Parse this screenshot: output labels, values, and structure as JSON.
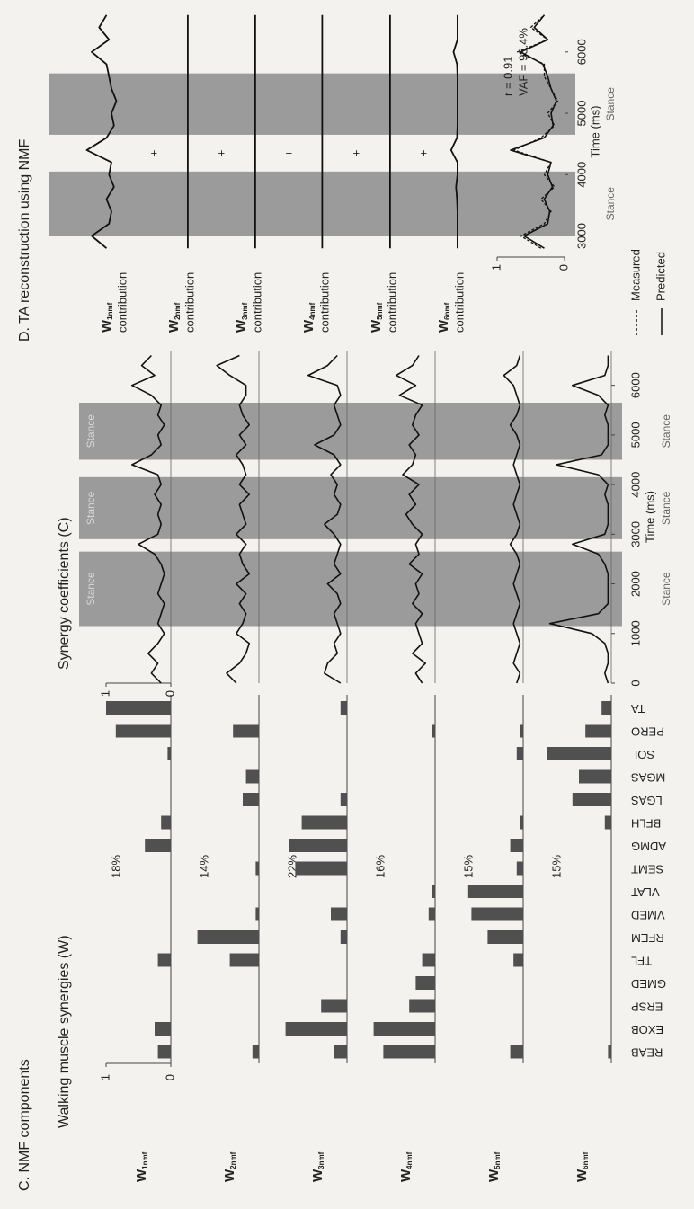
{
  "chart_data": [
    {
      "type": "bar",
      "panel_title": "C. NMF components",
      "title": "Walking muscle synergies (W)",
      "categories": [
        "REAB",
        "EXOB",
        "ERSP",
        "GMED",
        "TFL",
        "RFEM",
        "VMED",
        "VLAT",
        "SEMT",
        "ADMG",
        "BFLH",
        "LGAS",
        "MGAS",
        "SOL",
        "PERO",
        "TA"
      ],
      "ylim": [
        0,
        1
      ],
      "yticks": [
        0,
        1
      ],
      "color": "#505050",
      "series": [
        {
          "name": {
            "base": "W",
            "sub": "1nmf"
          },
          "annotation": "18%",
          "values": [
            0.2,
            0.25,
            0,
            0,
            0.2,
            0,
            0,
            0,
            0,
            0.4,
            0.15,
            0,
            0,
            0.05,
            0.85,
            1.0
          ]
        },
        {
          "name": {
            "base": "W",
            "sub": "2nmf"
          },
          "annotation": "14%",
          "values": [
            0.1,
            0,
            0,
            0,
            0.45,
            0.95,
            0.05,
            0,
            0.05,
            0,
            0,
            0.25,
            0.2,
            0,
            0.4,
            0
          ]
        },
        {
          "name": {
            "base": "W",
            "sub": "3nmf"
          },
          "annotation": "22%",
          "values": [
            0.2,
            0.95,
            0.4,
            0,
            0,
            0.1,
            0.25,
            0,
            0.8,
            0.9,
            0.7,
            0.1,
            0,
            0,
            0,
            0.1
          ]
        },
        {
          "name": {
            "base": "W",
            "sub": "4nmf"
          },
          "annotation": "16%",
          "values": [
            0.8,
            0.95,
            0.4,
            0.3,
            0.2,
            0,
            0.1,
            0.05,
            0,
            0,
            0,
            0,
            0,
            0,
            0.05,
            0
          ]
        },
        {
          "name": {
            "base": "W",
            "sub": "5nmf"
          },
          "annotation": "15%",
          "values": [
            0.2,
            0,
            0,
            0,
            0.15,
            0.55,
            0.8,
            0.85,
            0.1,
            0.2,
            0.05,
            0,
            0,
            0.1,
            0.05,
            0
          ]
        },
        {
          "name": {
            "base": "W",
            "sub": "6nmf"
          },
          "annotation": "15%",
          "values": [
            0.05,
            0,
            0,
            0,
            0,
            0,
            0,
            0,
            0,
            0,
            0.1,
            0.6,
            0.5,
            1.0,
            0.4,
            0.15
          ]
        }
      ]
    },
    {
      "type": "line",
      "title": "Synergy coefficients (C)",
      "x": [
        0,
        200,
        400,
        600,
        800,
        1000,
        1200,
        1400,
        1600,
        1800,
        2000,
        2200,
        2400,
        2600,
        2800,
        3000,
        3200,
        3400,
        3600,
        3800,
        4000,
        4200,
        4400,
        4600,
        4800,
        5000,
        5200,
        5400,
        5600,
        5800,
        6000,
        6200,
        6400,
        6600
      ],
      "xlim": [
        0,
        6700
      ],
      "xticks": [
        0,
        1000,
        2000,
        3000,
        4000,
        5000,
        6000
      ],
      "xlabel": "Time (ms)",
      "ylim": [
        0,
        1
      ],
      "yticks": [
        0,
        1
      ],
      "color": "#111111",
      "band_color": "#8c8c8c",
      "band_label_positions": [
        "top",
        "bottom"
      ],
      "bands": [
        {
          "start": 1150,
          "end": 2650,
          "label": "Stance"
        },
        {
          "start": 2900,
          "end": 4150,
          "label": "Stance"
        },
        {
          "start": 4500,
          "end": 5650,
          "label": "Stance"
        }
      ],
      "series": [
        {
          "values": [
            0.15,
            0.3,
            0.2,
            0.35,
            0.2,
            0.1,
            0.2,
            0.15,
            0.1,
            0.2,
            0.15,
            0.1,
            0.15,
            0.25,
            0.5,
            0.2,
            0.15,
            0.2,
            0.15,
            0.25,
            0.15,
            0.2,
            0.6,
            0.3,
            0.15,
            0.2,
            0.1,
            0.2,
            0.15,
            0.3,
            0.6,
            0.25,
            0.45,
            0.3
          ]
        },
        {
          "values": [
            0.35,
            0.5,
            0.3,
            0.2,
            0.15,
            0.35,
            0.25,
            0.2,
            0.3,
            0.2,
            0.35,
            0.15,
            0.25,
            0.3,
            0.2,
            0.35,
            0.2,
            0.25,
            0.3,
            0.15,
            0.3,
            0.2,
            0.25,
            0.35,
            0.2,
            0.3,
            0.15,
            0.25,
            0.3,
            0.2,
            0.2,
            0.45,
            0.65,
            0.3
          ]
        },
        {
          "values": [
            0.1,
            0.35,
            0.3,
            0.15,
            0.2,
            0.1,
            0.15,
            0.2,
            0.1,
            0.15,
            0.3,
            0.1,
            0.2,
            0.15,
            0.1,
            0.2,
            0.35,
            0.15,
            0.1,
            0.2,
            0.15,
            0.25,
            0.1,
            0.2,
            0.5,
            0.2,
            0.1,
            0.15,
            0.2,
            0.1,
            0.15,
            0.6,
            0.3,
            0.15
          ]
        },
        {
          "values": [
            0.2,
            0.3,
            0.15,
            0.35,
            0.2,
            0.25,
            0.3,
            0.2,
            0.35,
            0.25,
            0.3,
            0.2,
            0.4,
            0.25,
            0.3,
            0.2,
            0.35,
            0.45,
            0.3,
            0.4,
            0.25,
            0.5,
            0.35,
            0.3,
            0.4,
            0.25,
            0.35,
            0.3,
            0.2,
            0.55,
            0.3,
            0.6,
            0.35,
            0.25
          ]
        },
        {
          "values": [
            0.1,
            0.05,
            0.15,
            0.1,
            0.05,
            0.1,
            0.15,
            0.1,
            0.05,
            0.1,
            0.15,
            0.1,
            0.05,
            0.1,
            0.2,
            0.1,
            0.05,
            0.1,
            0.15,
            0.1,
            0.05,
            0.1,
            0.15,
            0.1,
            0.05,
            0.1,
            0.2,
            0.1,
            0.05,
            0.1,
            0.15,
            0.3,
            0.1,
            0.05
          ]
        },
        {
          "values": [
            0.05,
            0.1,
            0.05,
            0.05,
            0.1,
            0.3,
            0.95,
            0.2,
            0.05,
            0.05,
            0.05,
            0.05,
            0.1,
            0.2,
            0.6,
            0.1,
            0.05,
            0.05,
            0.05,
            0.1,
            0.05,
            0.2,
            0.85,
            0.15,
            0.05,
            0.05,
            0.05,
            0.1,
            0.05,
            0.2,
            0.6,
            0.1,
            0.05,
            0.05
          ]
        }
      ]
    },
    {
      "type": "line",
      "title": "D. TA reconstruction using NMF",
      "x": [
        2800,
        3000,
        3200,
        3400,
        3600,
        3800,
        4000,
        4200,
        4400,
        4600,
        4800,
        5000,
        5200,
        5400,
        5600,
        5800,
        6000,
        6200,
        6400,
        6600
      ],
      "xlim": [
        2700,
        6700
      ],
      "xticks": [
        3000,
        4000,
        5000,
        6000
      ],
      "xlabel": "Time (ms)",
      "ylim": [
        0,
        1
      ],
      "yticks": [
        0,
        1
      ],
      "color": "#111111",
      "band_color": "#8c8c8c",
      "band_label_positions": [
        "bottom"
      ],
      "bands": [
        {
          "start": 3000,
          "end": 4050,
          "label": "Stance"
        },
        {
          "start": 4650,
          "end": 5650,
          "label": "Stance"
        }
      ],
      "contributions": [
        {
          "name": {
            "base": "W",
            "sub": "1nmf"
          },
          "label": "contribution",
          "values": [
            0.3,
            0.6,
            0.25,
            0.2,
            0.3,
            0.15,
            0.25,
            0.2,
            0.7,
            0.3,
            0.15,
            0.2,
            0.1,
            0.2,
            0.25,
            0.3,
            0.6,
            0.25,
            0.45,
            0.3
          ]
        },
        {
          "name": {
            "base": "W",
            "sub": "2nmf"
          },
          "label": "contribution",
          "values": [
            0.02,
            0.02,
            0.02,
            0.02,
            0.02,
            0.02,
            0.02,
            0.02,
            0.02,
            0.02,
            0.02,
            0.02,
            0.02,
            0.02,
            0.02,
            0.02,
            0.02,
            0.02,
            0.02,
            0.02
          ]
        },
        {
          "name": {
            "base": "W",
            "sub": "3nmf"
          },
          "label": "contribution",
          "values": [
            0.02,
            0.02,
            0.02,
            0.02,
            0.02,
            0.02,
            0.02,
            0.02,
            0.02,
            0.02,
            0.02,
            0.02,
            0.02,
            0.02,
            0.02,
            0.02,
            0.02,
            0.02,
            0.02,
            0.02
          ]
        },
        {
          "name": {
            "base": "W",
            "sub": "4nmf"
          },
          "label": "contribution",
          "values": [
            0.03,
            0.03,
            0.03,
            0.03,
            0.03,
            0.03,
            0.03,
            0.03,
            0.03,
            0.03,
            0.03,
            0.03,
            0.03,
            0.03,
            0.03,
            0.03,
            0.03,
            0.03,
            0.03,
            0.03
          ]
        },
        {
          "name": {
            "base": "W",
            "sub": "5nmf"
          },
          "label": "contribution",
          "values": [
            0.02,
            0.02,
            0.02,
            0.02,
            0.02,
            0.02,
            0.02,
            0.02,
            0.02,
            0.02,
            0.02,
            0.02,
            0.02,
            0.02,
            0.02,
            0.02,
            0.02,
            0.02,
            0.02,
            0.02
          ]
        },
        {
          "name": {
            "base": "W",
            "sub": "6nmf"
          },
          "label": "contribution",
          "values": [
            0.02,
            0.02,
            0.02,
            0.02,
            0.03,
            0.05,
            0.02,
            0.02,
            0.15,
            0.03,
            0.02,
            0.02,
            0.02,
            0.02,
            0.02,
            0.03,
            0.1,
            0.02,
            0.02,
            0.02
          ]
        }
      ],
      "series": [
        {
          "name": "Measured",
          "dashed": true,
          "values": [
            0.35,
            0.65,
            0.3,
            0.2,
            0.35,
            0.15,
            0.3,
            0.2,
            0.75,
            0.35,
            0.15,
            0.25,
            0.1,
            0.2,
            0.3,
            0.3,
            0.7,
            0.25,
            0.5,
            0.3
          ]
        },
        {
          "name": "Predicted",
          "dashed": false,
          "values": [
            0.3,
            0.6,
            0.25,
            0.22,
            0.3,
            0.18,
            0.25,
            0.2,
            0.8,
            0.3,
            0.17,
            0.2,
            0.12,
            0.2,
            0.25,
            0.32,
            0.65,
            0.25,
            0.45,
            0.3
          ]
        }
      ],
      "annotations": [
        "r = 0.91",
        "VAF = 95.4%"
      ]
    }
  ]
}
